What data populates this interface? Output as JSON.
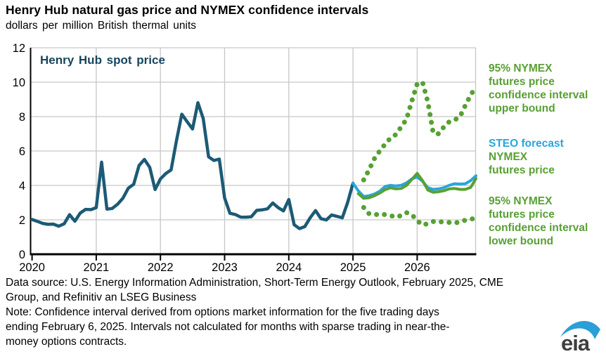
{
  "title": "Henry Hub natural gas price and NYMEX confidence intervals",
  "subtitle": "dollars per million British thermal units",
  "inline_label": "Henry Hub spot price",
  "annotations": {
    "upper_lines": [
      "95% NYMEX",
      "futures price",
      "confidence interval",
      "upper bound"
    ],
    "steo_lines": [
      "STEO forecast",
      "NYMEX",
      "futures price"
    ],
    "lower_lines": [
      "95% NYMEX",
      "futures price",
      "confidence interval",
      "lower bound"
    ]
  },
  "footer": {
    "lines": [
      "Data source: U.S. Energy Information Administration, Short-Term Energy Outlook, February 2025, CME",
      "Group, and Refinitiv an LSEG Business",
      "Note: Confidence interval derived from options market information for the five trading days",
      "ending February 6, 2025. Intervals not calculated for months with sparse trading in near-the-",
      "money options contracts."
    ]
  },
  "logo_text": "eia",
  "colors": {
    "navy": "#17455f",
    "spot": "#1c5a75",
    "blue": "#29a5dc",
    "green": "#58a033",
    "grid": "#c7c7c7",
    "axis": "#000000",
    "logo_swoosh": "#2b9fd8"
  },
  "chart_data": {
    "type": "line",
    "title": "Henry Hub natural gas price and NYMEX confidence intervals",
    "xlabel": "",
    "ylabel": "dollars per million British thermal units",
    "ylim": [
      0,
      12
    ],
    "yticks": [
      0,
      2,
      4,
      6,
      8,
      10,
      12
    ],
    "xticks": [
      2020,
      2021,
      2022,
      2023,
      2024,
      2025,
      2026
    ],
    "x_unit": "monthly, months indexed from Jan 2020",
    "x_range": [
      "2020-01",
      "2026-12"
    ],
    "grid": "on",
    "legend_position": "right-margin-text",
    "series": [
      {
        "name": "Henry Hub spot price",
        "style": "solid",
        "color_key": "spot",
        "width": 4.5,
        "start_month": 0,
        "values": [
          2.02,
          1.91,
          1.79,
          1.74,
          1.75,
          1.63,
          1.77,
          2.3,
          1.92,
          2.39,
          2.61,
          2.59,
          2.71,
          5.35,
          2.62,
          2.66,
          2.91,
          3.26,
          3.84,
          4.07,
          5.16,
          5.51,
          5.05,
          3.76,
          4.38,
          4.69,
          4.9,
          6.6,
          8.14,
          7.7,
          7.28,
          8.81,
          7.88,
          5.66,
          5.45,
          5.53,
          3.27,
          2.38,
          2.31,
          2.16,
          2.15,
          2.18,
          2.55,
          2.58,
          2.64,
          2.98,
          2.71,
          2.52,
          3.18,
          1.72,
          1.49,
          1.61,
          2.12,
          2.54,
          2.07,
          1.99,
          2.28,
          2.2,
          2.12,
          3.01,
          4.13
        ]
      },
      {
        "name": "STEO forecast",
        "style": "solid",
        "color_key": "blue",
        "width": 4,
        "start_month": 60,
        "values": [
          4.13,
          3.68,
          3.36,
          3.4,
          3.5,
          3.66,
          3.94,
          4.01,
          3.97,
          4.01,
          4.15,
          4.38,
          4.49,
          4.24,
          3.87,
          3.77,
          3.8,
          3.87,
          4.01,
          4.1,
          4.08,
          4.1,
          4.28,
          4.56
        ]
      },
      {
        "name": "NYMEX futures price",
        "style": "solid",
        "color_key": "green",
        "width": 4,
        "start_month": 61,
        "values": [
          3.52,
          3.25,
          3.28,
          3.4,
          3.55,
          3.75,
          3.86,
          3.8,
          3.82,
          4.0,
          4.35,
          4.7,
          4.28,
          3.73,
          3.6,
          3.63,
          3.69,
          3.8,
          3.82,
          3.77,
          3.77,
          3.88,
          4.4
        ]
      },
      {
        "name": "95% NYMEX futures price confidence interval upper bound",
        "style": "dotted",
        "color_key": "green",
        "width": 7,
        "start_month": 62,
        "values": [
          4.32,
          4.9,
          5.55,
          6.0,
          6.4,
          6.75,
          6.95,
          7.4,
          7.85,
          8.9,
          9.9,
          10.0,
          8.85,
          7.05,
          7.0,
          7.4,
          7.7,
          7.8,
          8.0,
          8.65,
          9.25,
          9.75
        ]
      },
      {
        "name": "95% NYMEX futures price confidence interval lower bound",
        "style": "dotted",
        "color_key": "green",
        "width": 7,
        "start_month": 62,
        "values": [
          2.72,
          2.36,
          2.28,
          2.35,
          2.3,
          2.25,
          2.15,
          2.25,
          2.42,
          2.3,
          1.95,
          1.7,
          1.78,
          1.9,
          1.86,
          1.9,
          1.85,
          1.81,
          1.88,
          1.98,
          2.02,
          2.14
        ]
      }
    ]
  }
}
